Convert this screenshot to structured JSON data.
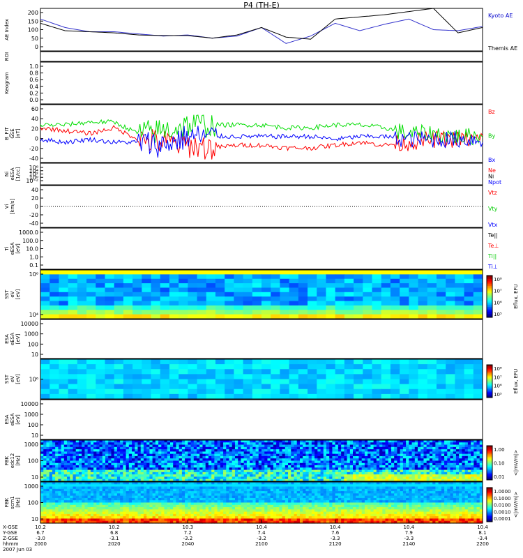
{
  "title": "P4 (TH-E)",
  "colors": {
    "frame": "#000000",
    "red": "#ff0000",
    "green": "#00dd00",
    "blue": "#0000ff",
    "yellow": "#ffff00",
    "cyan": "#00d8ff"
  },
  "panels": [
    {
      "id": "ae",
      "ylabel": [
        "AE Index"
      ],
      "yticks": [
        "200",
        "150",
        "100",
        "50",
        "0"
      ],
      "legend": [
        {
          "text": "Kyoto AE",
          "color": "#0000cc"
        },
        {
          "text": "Themis AE",
          "color": "#000000"
        }
      ]
    },
    {
      "id": "roi",
      "ylabel": [
        "ROI"
      ],
      "yticks": [],
      "legend": []
    },
    {
      "id": "keogram",
      "ylabel": [
        "Keogram"
      ],
      "yticks": [
        "1.0",
        "0.8",
        "0.6",
        "0.4",
        "0.2",
        "0.0"
      ],
      "legend": []
    },
    {
      "id": "bfit",
      "ylabel": [
        "B_FIT",
        "GSE",
        "[nT]"
      ],
      "yticks": [
        "60",
        "40",
        "20",
        "0",
        "-20",
        "-40"
      ],
      "legend": [
        {
          "text": "Bz",
          "color": "#ff0000"
        },
        {
          "text": "By",
          "color": "#00cc00"
        },
        {
          "text": "Bx",
          "color": "#0000ff"
        }
      ]
    },
    {
      "id": "ni",
      "ylabel": [
        "Ni",
        "eESA",
        "[1/cc]"
      ],
      "yticks": [
        "10⁶",
        "10⁴",
        "10²",
        "10⁰",
        "10⁻²"
      ],
      "legend": [
        {
          "text": "Ne",
          "color": "#ff0000"
        },
        {
          "text": "Ni",
          "color": "#000000"
        },
        {
          "text": "Npot",
          "color": "#0000ff"
        }
      ]
    },
    {
      "id": "vi",
      "ylabel": [
        "Vi",
        "[km/s]"
      ],
      "yticks": [
        "40",
        "20",
        "0",
        "-20",
        "-40"
      ],
      "legend": [
        {
          "text": "Vtz",
          "color": "#ff0000"
        },
        {
          "text": "Vty",
          "color": "#00cc00"
        },
        {
          "text": "Vtx",
          "color": "#0000ff"
        }
      ]
    },
    {
      "id": "ti",
      "ylabel": [
        "Ti",
        "eESA",
        "[eV]"
      ],
      "yticks": [
        "1000.0",
        "100.0",
        "10.0",
        "1.0",
        "0.1"
      ],
      "legend": [
        {
          "text": "Te||",
          "color": "#000000"
        },
        {
          "text": "Te⊥",
          "color": "#ff0000"
        },
        {
          "text": "Ti||",
          "color": "#00cc00"
        },
        {
          "text": "Ti⊥",
          "color": "#0000ff"
        }
      ]
    },
    {
      "id": "sst1",
      "ylabel": [
        "SST",
        "eV",
        "[eV]"
      ],
      "yticks": [
        "10⁶",
        "10⁴"
      ],
      "legend": []
    },
    {
      "id": "esa1",
      "ylabel": [
        "ESA",
        "eESA",
        "[eV]"
      ],
      "yticks": [
        "10000",
        "1000",
        "100",
        "10"
      ],
      "legend": []
    },
    {
      "id": "sst2",
      "ylabel": [
        "SST",
        "eV",
        "[eV]"
      ],
      "yticks": [
        "10⁶"
      ],
      "legend": []
    },
    {
      "id": "esa2",
      "ylabel": [
        "ESA",
        "eESA",
        "[eV]"
      ],
      "yticks": [
        "10000",
        "1000",
        "100",
        "10"
      ],
      "legend": []
    },
    {
      "id": "fbk1",
      "ylabel": [
        "FBK",
        "edc12",
        "[Hz]"
      ],
      "yticks": [
        "1000",
        "100",
        "10"
      ],
      "legend": []
    },
    {
      "id": "fbk2",
      "ylabel": [
        "FBK",
        "scm1",
        "[Hz]"
      ],
      "yticks": [
        "1000",
        "100",
        "10"
      ],
      "legend": []
    }
  ],
  "colorbars": [
    {
      "id": "cb1",
      "labels": [
        "10⁸",
        "10⁷",
        "10⁶",
        "10⁵"
      ],
      "title": "Eflux, EFU"
    },
    {
      "id": "cb2",
      "labels": [
        "10⁸",
        "10⁷",
        "10⁶",
        "10⁵"
      ],
      "title": "Eflux, EFU"
    },
    {
      "id": "cb3",
      "labels": [
        "1.00",
        "0.10",
        "0.01"
      ],
      "title": "<|mV/m|>"
    },
    {
      "id": "cb4",
      "labels": [
        "1.0000",
        "0.1000",
        "0.0100",
        "0.0010",
        "0.0001"
      ],
      "title": "<|mV/m|>"
    }
  ],
  "xaxis": {
    "row_labels": [
      "X-GSE",
      "Y-GSE",
      "Z-GSE",
      "hhmm",
      "2007 Jun 03"
    ],
    "columns": [
      [
        "10.2",
        "6.7",
        "-3.0",
        "2000"
      ],
      [
        "10.2",
        "6.8",
        "-3.1",
        "2020"
      ],
      [
        "10.3",
        "7.2",
        "-3.2",
        "2040"
      ],
      [
        "10.4",
        "7.4",
        "-3.2",
        "2100"
      ],
      [
        "10.4",
        "7.6",
        "-3.3",
        "2120"
      ],
      [
        "10.4",
        "7.9",
        "-3.3",
        "2140"
      ],
      [
        "10.4",
        "8.1",
        "-3.4",
        "2200"
      ]
    ]
  },
  "chart_data": {
    "type": "line",
    "title": "P4 (TH-E)",
    "x": [
      "2000",
      "2020",
      "2040",
      "2100",
      "2120",
      "2140",
      "2200"
    ],
    "xlabel": "hhmm",
    "date": "2007 Jun 03",
    "ae_index": {
      "ylabel": "AE Index",
      "ylim": [
        0,
        200
      ],
      "series": [
        {
          "name": "Kyoto AE",
          "values": [
            150,
            110,
            90,
            90,
            80,
            70,
            75,
            60,
            70,
            110,
            35,
            70,
            130,
            95,
            125,
            150,
            100,
            95,
            115
          ]
        },
        {
          "name": "Themis AE",
          "values": [
            130,
            95,
            90,
            85,
            75,
            72,
            72,
            60,
            75,
            110,
            65,
            55,
            150,
            160,
            170,
            185,
            200,
            85,
            110
          ]
        }
      ]
    },
    "b_fit": {
      "ylabel": "B_FIT GSE [nT]",
      "ylim": [
        -40,
        60
      ],
      "series": [
        {
          "name": "Bz",
          "values": [
            20,
            15,
            10,
            20,
            0,
            -5,
            -10,
            -15,
            -10,
            -10,
            -15,
            -15,
            -10,
            -5,
            -10,
            -5,
            0,
            0,
            0
          ]
        },
        {
          "name": "By",
          "values": [
            25,
            25,
            30,
            30,
            10,
            15,
            25,
            25,
            25,
            25,
            20,
            20,
            25,
            25,
            20,
            10,
            10,
            5,
            5
          ]
        },
        {
          "name": "Bx",
          "values": [
            0,
            -5,
            0,
            -5,
            -5,
            -10,
            5,
            5,
            5,
            5,
            5,
            5,
            0,
            5,
            5,
            0,
            0,
            0,
            0
          ]
        }
      ]
    }
  }
}
